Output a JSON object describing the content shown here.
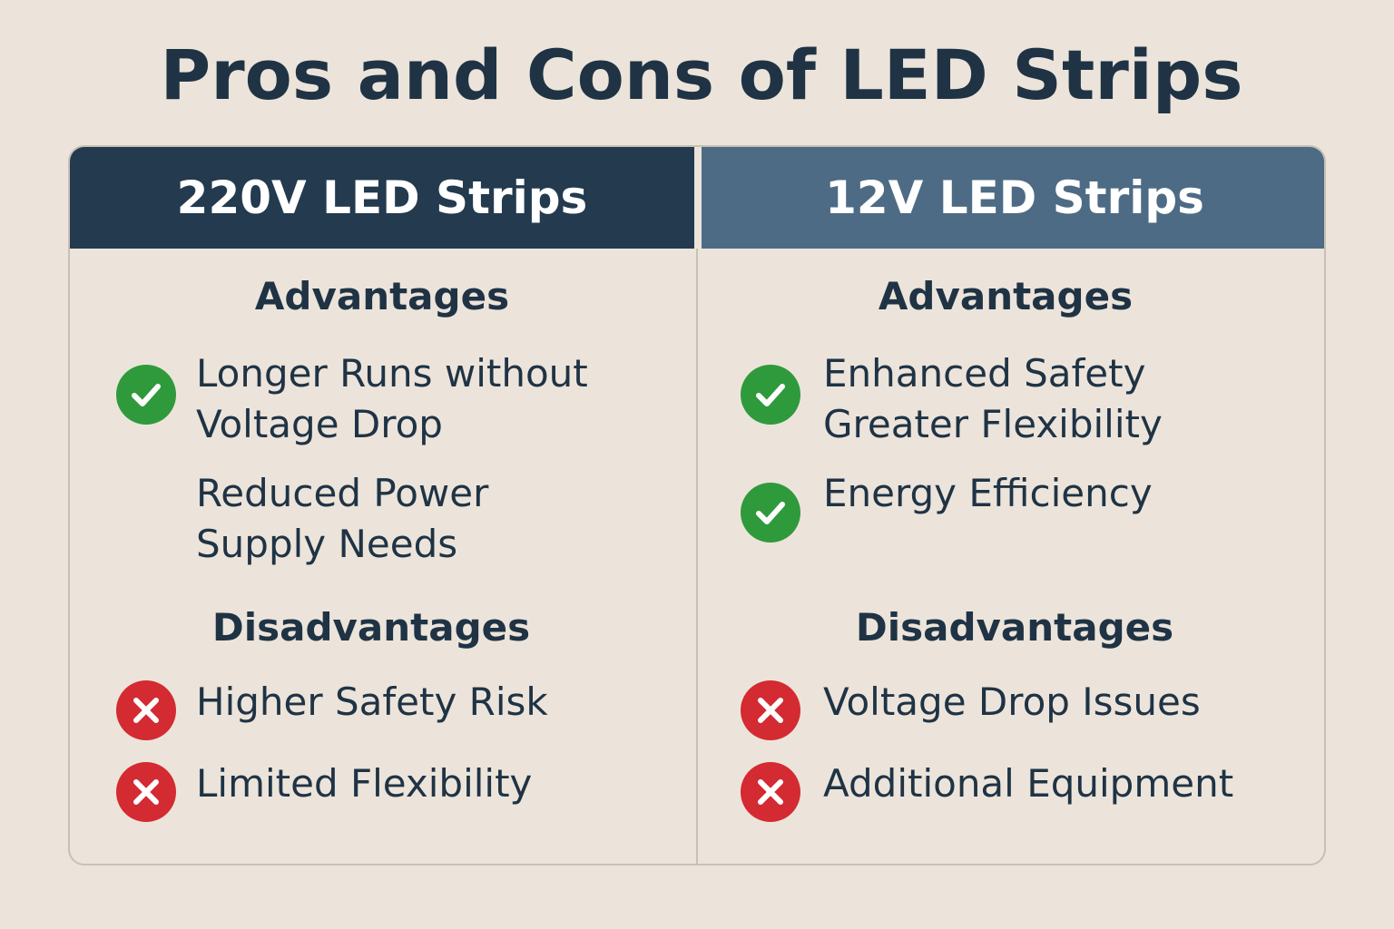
{
  "title": "Pros and Cons of LED Strips",
  "colors": {
    "background": "#ece4da",
    "text": "#1f3345",
    "header_left": "#233a4f",
    "header_right": "#4d6b84",
    "check": "#2f9a3b",
    "cross": "#d42a32"
  },
  "columns": [
    {
      "header": "220V LED Strips",
      "advantages_title": "Advantages",
      "advantages": [
        {
          "line1": "Longer Runs without",
          "line2": "Voltage Drop",
          "icon": "check-icon"
        },
        {
          "line1": "Reduced Power",
          "line2": "Supply Needs",
          "icon": "none"
        }
      ],
      "disadvantages_title": "Disadvantages",
      "disadvantages": [
        {
          "text": "Higher Safety Risk",
          "icon": "cross-icon"
        },
        {
          "text": "Limited Flexibility",
          "icon": "cross-icon"
        }
      ]
    },
    {
      "header": "12V LED Strips",
      "advantages_title": "Advantages",
      "advantages": [
        {
          "line1": "Enhanced Safety",
          "line2": "Greater Flexibility",
          "icon": "check-icon"
        },
        {
          "line1": "Energy Efficiency",
          "line2": "",
          "icon": "check-icon"
        }
      ],
      "disadvantages_title": "Disadvantages",
      "disadvantages": [
        {
          "text": "Voltage Drop Issues",
          "icon": "cross-icon"
        },
        {
          "text": "Additional Equipment",
          "icon": "cross-icon"
        }
      ]
    }
  ]
}
